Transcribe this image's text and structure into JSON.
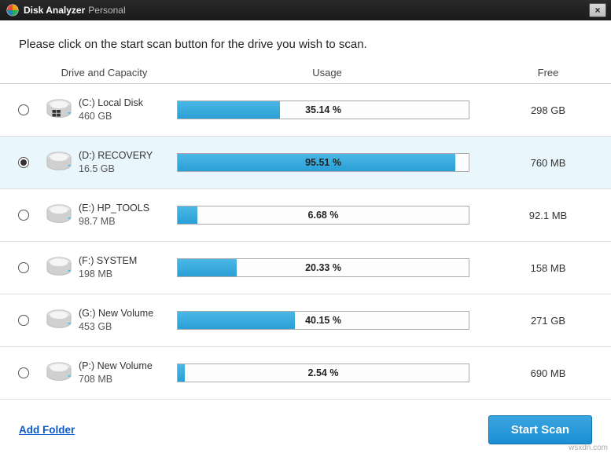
{
  "titlebar": {
    "app_name": "Disk Analyzer",
    "edition": "Personal",
    "close_label": "×"
  },
  "instruction": "Please click on the start scan button for the drive you wish to scan.",
  "headers": {
    "drive": "Drive and Capacity",
    "usage": "Usage",
    "free": "Free"
  },
  "drives": [
    {
      "name": "(C:)  Local Disk",
      "size": "460 GB",
      "usage_percent": 35.14,
      "usage_label": "35.14 %",
      "free": "298 GB",
      "selected": false,
      "is_system": true
    },
    {
      "name": "(D:)  RECOVERY",
      "size": "16.5 GB",
      "usage_percent": 95.51,
      "usage_label": "95.51 %",
      "free": "760 MB",
      "selected": true,
      "is_system": false
    },
    {
      "name": "(E:)  HP_TOOLS",
      "size": "98.7 MB",
      "usage_percent": 6.68,
      "usage_label": "6.68 %",
      "free": "92.1 MB",
      "selected": false,
      "is_system": false
    },
    {
      "name": "(F:)  SYSTEM",
      "size": "198 MB",
      "usage_percent": 20.33,
      "usage_label": "20.33 %",
      "free": "158 MB",
      "selected": false,
      "is_system": false
    },
    {
      "name": "(G:)  New Volume",
      "size": "453 GB",
      "usage_percent": 40.15,
      "usage_label": "40.15 %",
      "free": "271 GB",
      "selected": false,
      "is_system": false
    },
    {
      "name": "(P:)  New Volume",
      "size": "708 MB",
      "usage_percent": 2.54,
      "usage_label": "2.54 %",
      "free": "690 MB",
      "selected": false,
      "is_system": false
    }
  ],
  "footer": {
    "add_folder": "Add Folder",
    "start_scan": "Start Scan"
  },
  "style": {
    "progress_fill": "#2fa3dc",
    "progress_border": "#aaaaaa",
    "row_selected_bg": "#e9f6fc",
    "accent_button_bg": "#2a9fd6"
  },
  "watermark": "wsxdn.com"
}
